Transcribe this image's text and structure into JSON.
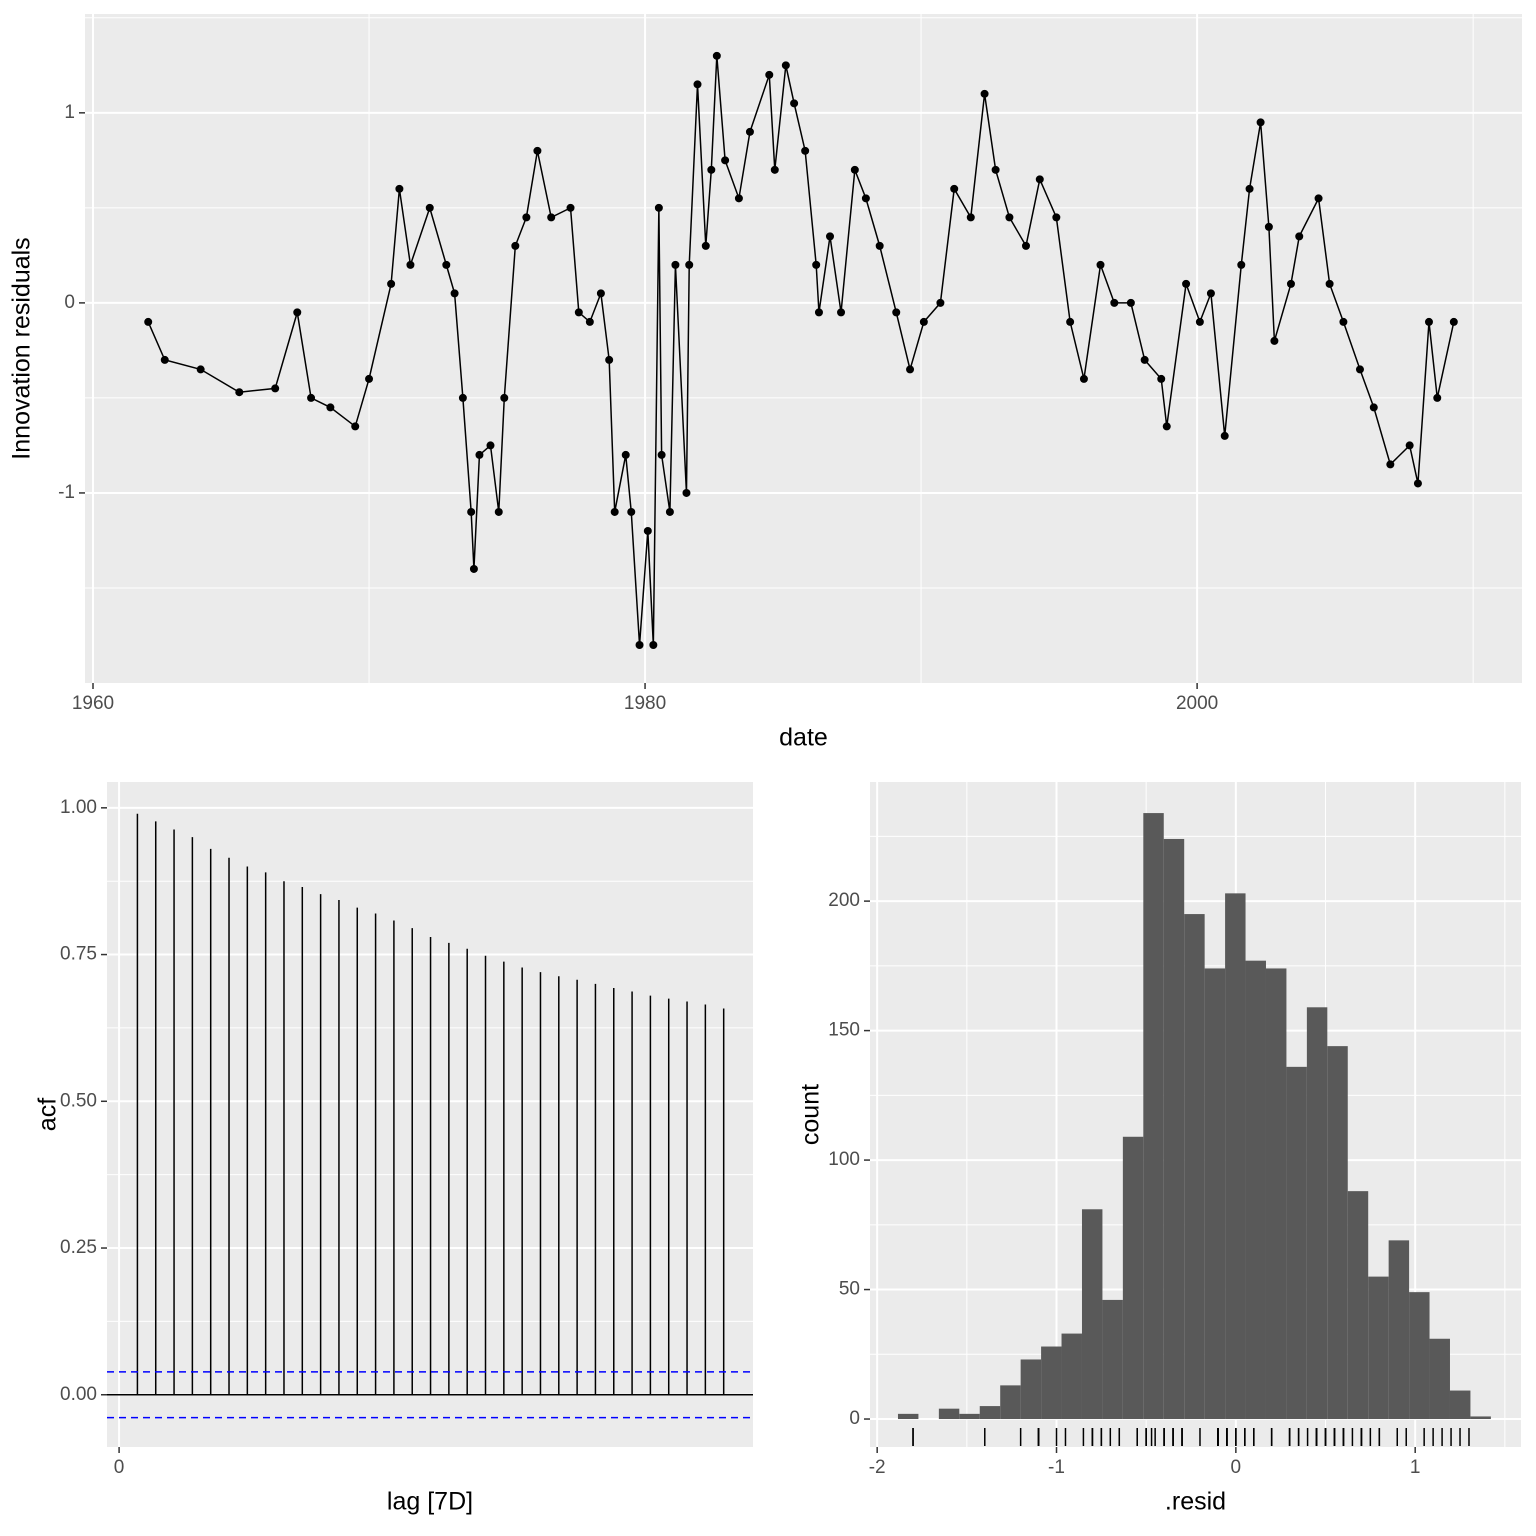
{
  "chart_data": [
    {
      "type": "line",
      "x_label": "date",
      "y_label": "Innovation residuals",
      "color": "#000000",
      "x": [
        1962.0,
        1962.6,
        1963.9,
        1965.3,
        1966.6,
        1967.4,
        1967.9,
        1968.6,
        1969.5,
        1970.0,
        1970.8,
        1971.1,
        1971.5,
        1972.2,
        1972.8,
        1973.1,
        1973.4,
        1973.7,
        1973.8,
        1974.0,
        1974.4,
        1974.7,
        1974.9,
        1975.3,
        1975.7,
        1976.1,
        1976.6,
        1977.3,
        1977.6,
        1978.0,
        1978.4,
        1978.7,
        1978.9,
        1979.3,
        1979.5,
        1979.8,
        1980.1,
        1980.3,
        1980.5,
        1980.6,
        1980.9,
        1981.1,
        1981.5,
        1981.6,
        1981.9,
        1982.2,
        1982.4,
        1982.6,
        1982.9,
        1983.4,
        1983.8,
        1984.5,
        1984.7,
        1985.1,
        1985.4,
        1985.8,
        1986.2,
        1986.3,
        1986.7,
        1987.1,
        1987.6,
        1988.0,
        1988.5,
        1989.1,
        1989.6,
        1990.1,
        1990.7,
        1991.2,
        1991.8,
        1992.3,
        1992.7,
        1993.2,
        1993.8,
        1994.3,
        1994.9,
        1995.4,
        1995.9,
        1996.5,
        1997.0,
        1997.6,
        1998.1,
        1998.7,
        1998.9,
        1999.6,
        2000.1,
        2000.5,
        2001.0,
        2001.6,
        2001.9,
        2002.3,
        2002.6,
        2002.8,
        2003.4,
        2003.7,
        2004.4,
        2004.8,
        2005.3,
        2005.9,
        2006.4,
        2007.0,
        2007.7,
        2008.0,
        2008.4,
        2008.7,
        2009.3
      ],
      "values": [
        -0.1,
        -0.3,
        -0.35,
        -0.47,
        -0.45,
        -0.05,
        -0.5,
        -0.55,
        -0.65,
        -0.4,
        0.1,
        0.6,
        0.2,
        0.5,
        0.2,
        0.05,
        -0.5,
        -1.1,
        -1.4,
        -0.8,
        -0.75,
        -1.1,
        -0.5,
        0.3,
        0.45,
        0.8,
        0.45,
        0.5,
        -0.05,
        -0.1,
        0.05,
        -0.3,
        -1.1,
        -0.8,
        -1.1,
        -1.8,
        -1.2,
        -1.8,
        0.5,
        -0.8,
        -1.1,
        0.2,
        -1.0,
        0.2,
        1.15,
        0.3,
        0.7,
        1.3,
        0.75,
        0.55,
        0.9,
        1.2,
        0.7,
        1.25,
        1.05,
        0.8,
        0.2,
        -0.05,
        0.35,
        -0.05,
        0.7,
        0.55,
        0.3,
        -0.05,
        -0.35,
        -0.1,
        0.0,
        0.6,
        0.45,
        1.1,
        0.7,
        0.45,
        0.3,
        0.65,
        0.45,
        -0.1,
        -0.4,
        0.2,
        0.0,
        0.0,
        -0.3,
        -0.4,
        -0.65,
        0.1,
        -0.1,
        0.05,
        -0.7,
        0.2,
        0.6,
        0.95,
        0.4,
        -0.2,
        0.1,
        0.35,
        0.55,
        0.1,
        -0.1,
        -0.35,
        -0.55,
        -0.85,
        -0.75,
        -0.95,
        -0.1,
        -0.5,
        -0.1
      ],
      "xlim": [
        1959.71,
        2011.77
      ],
      "ylim": [
        -2.0,
        1.52
      ],
      "xticks": [
        1960,
        1980,
        2000
      ],
      "yticks": [
        -1,
        0,
        1
      ],
      "x_minor_grid": [
        1970,
        1990,
        2010
      ],
      "y_minor_grid": [
        -1.5,
        -0.5,
        0.5,
        1.5
      ],
      "grid": true
    },
    {
      "type": "acf",
      "x_label": "lag [7D]",
      "y_label": "acf",
      "color": "#000000",
      "ci_color": "#0000ff",
      "x": [
        1,
        2,
        3,
        4,
        5,
        6,
        7,
        8,
        9,
        10,
        11,
        12,
        13,
        14,
        15,
        16,
        17,
        18,
        19,
        20,
        21,
        22,
        23,
        24,
        25,
        26,
        27,
        28,
        29,
        30,
        31,
        32,
        33
      ],
      "values": [
        0.99,
        0.977,
        0.963,
        0.95,
        0.93,
        0.915,
        0.9,
        0.89,
        0.875,
        0.865,
        0.853,
        0.843,
        0.83,
        0.82,
        0.808,
        0.795,
        0.78,
        0.77,
        0.76,
        0.748,
        0.738,
        0.728,
        0.72,
        0.713,
        0.707,
        0.7,
        0.693,
        0.687,
        0.68,
        0.675,
        0.67,
        0.665,
        0.658
      ],
      "ci_lines": [
        0.039,
        -0.039
      ],
      "xlim": [
        -0.66,
        34.6
      ],
      "ylim": [
        -0.089,
        1.044
      ],
      "xticks": [
        0
      ],
      "yticks": [
        {
          "value": 0,
          "label": "0.00"
        },
        {
          "value": 0.25,
          "label": "0.25"
        },
        {
          "value": 0.5,
          "label": "0.50"
        },
        {
          "value": 0.75,
          "label": "0.75"
        },
        {
          "value": 1,
          "label": "1.00"
        }
      ],
      "y_minor_grid": [
        0.125,
        0.375,
        0.625,
        0.875
      ],
      "grid": true
    },
    {
      "type": "histogram",
      "x_label": ".resid",
      "y_label": "count",
      "color": "#595959",
      "bins": [
        -1.884,
        -1.77,
        -1.656,
        -1.542,
        -1.428,
        -1.314,
        -1.2,
        -1.086,
        -0.972,
        -0.858,
        -0.744,
        -0.63,
        -0.516,
        -0.402,
        -0.288,
        -0.174,
        -0.06,
        0.054,
        0.168,
        0.282,
        0.396,
        0.51,
        0.624,
        0.738,
        0.852,
        0.966,
        1.08,
        1.194,
        1.308,
        1.422
      ],
      "counts": [
        2,
        0,
        4,
        2,
        5,
        13,
        23,
        28,
        33,
        81,
        46,
        109,
        234,
        224,
        195,
        174,
        203,
        177,
        174,
        136,
        159,
        144,
        88,
        55,
        69,
        49,
        31,
        11,
        1
      ],
      "xlim": [
        -2.04,
        1.59
      ],
      "ylim": [
        -10.8,
        246
      ],
      "xticks": [
        -2,
        -1,
        0,
        1
      ],
      "yticks": [
        0,
        50,
        100,
        150,
        200
      ],
      "x_minor_grid": [
        -1.5,
        -0.5,
        0.5,
        1.5
      ],
      "y_minor_grid": [
        25,
        75,
        125,
        175,
        225
      ],
      "grid": true
    }
  ]
}
